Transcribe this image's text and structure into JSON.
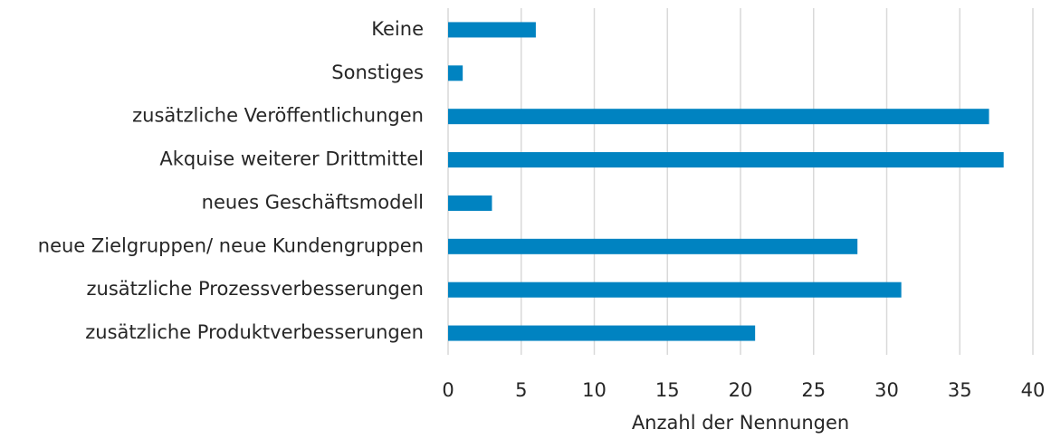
{
  "chart_data": {
    "type": "hbar",
    "x_label": "Anzahl der Nennungen",
    "categories": [
      "Keine",
      "Sonstiges",
      "zusätzliche Veröffentlichungen",
      "Akquise weiterer Drittmittel",
      "neues Geschäftsmodell",
      "neue Zielgruppen/ neue Kundengruppen",
      "zusätzliche Prozessverbesserungen",
      "zusätzliche Produktverbesserungen"
    ],
    "values": [
      6,
      1,
      37,
      38,
      3,
      28,
      31,
      21
    ],
    "color": "#0083c1",
    "xlim": [
      0,
      40
    ],
    "xticks": [
      0,
      5,
      10,
      15,
      20,
      25,
      30,
      35,
      40
    ],
    "grid": true
  }
}
